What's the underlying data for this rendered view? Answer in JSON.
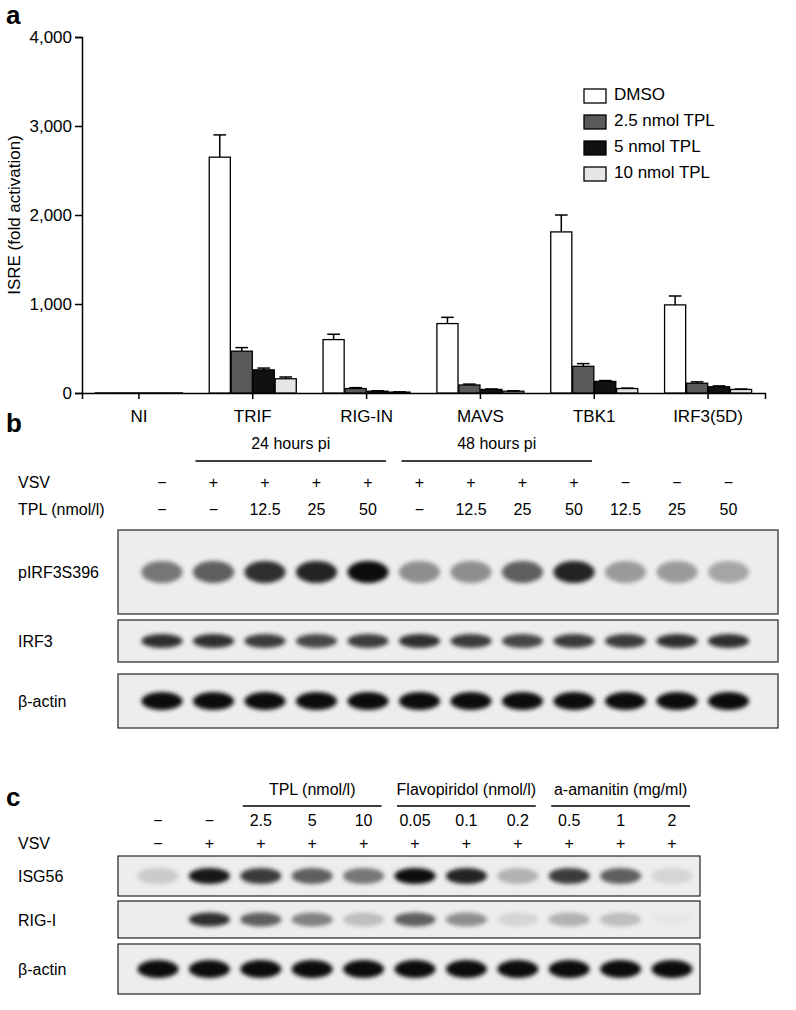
{
  "chart_data": {
    "type": "bar",
    "annotations": [
      "a"
    ],
    "y_label": "ISRE (fold activation)",
    "categories": [
      "NI",
      "TRIF",
      "RIG-IN",
      "MAVS",
      "TBK1",
      "IRF3(5D)"
    ],
    "ylim": [
      0,
      4000
    ],
    "yticks": [
      0,
      {
        "value": 1000,
        "label": "1,000"
      },
      {
        "value": 2000,
        "label": "2,000"
      },
      {
        "value": 3000,
        "label": "3,000"
      },
      {
        "value": 4000,
        "label": "4,000"
      }
    ],
    "grid": false,
    "legend": "top-right",
    "series": [
      {
        "name": "DMSO",
        "color": "#ffffff",
        "values": [
          1,
          2650,
          600,
          780,
          1810,
          990
        ],
        "errors": [
          0,
          250,
          60,
          70,
          190,
          100
        ]
      },
      {
        "name": "2.5 nmol TPL",
        "color": "#5a5a5a",
        "values": [
          1,
          470,
          50,
          90,
          300,
          110
        ],
        "errors": [
          0,
          40,
          10,
          10,
          30,
          15
        ]
      },
      {
        "name": "5 nmol TPL",
        "color": "#111111",
        "values": [
          1,
          260,
          20,
          40,
          130,
          70
        ],
        "errors": [
          0,
          20,
          5,
          5,
          10,
          10
        ]
      },
      {
        "name": "10 nmol TPL",
        "color": "#e6e6e6",
        "values": [
          1,
          160,
          10,
          20,
          50,
          40
        ],
        "errors": [
          0,
          20,
          3,
          5,
          5,
          5
        ]
      }
    ]
  },
  "blots": [
    {
      "label": "b",
      "groups": [
        {
          "text": "24 hours pi",
          "from": 1,
          "to": 4
        },
        {
          "text": "48 hours pi",
          "from": 5,
          "to": 8
        }
      ],
      "conditions": [
        {
          "name": "VSV",
          "values": [
            "−",
            "+",
            "+",
            "+",
            "+",
            "+",
            "+",
            "+",
            "+",
            "−",
            "−",
            "−"
          ]
        },
        {
          "name": "TPL (nmol/l)",
          "values": [
            "−",
            "−",
            "12.5",
            "25",
            "50",
            "−",
            "12.5",
            "25",
            "50",
            "12.5",
            "25",
            "50"
          ]
        }
      ],
      "rows": [
        {
          "name": "pIRF3S396",
          "intensity": [
            0.5,
            0.6,
            0.8,
            0.85,
            0.95,
            0.4,
            0.4,
            0.6,
            0.85,
            0.35,
            0.35,
            0.3
          ]
        },
        {
          "name": "IRF3",
          "intensity": [
            0.8,
            0.8,
            0.75,
            0.7,
            0.75,
            0.8,
            0.75,
            0.7,
            0.75,
            0.75,
            0.8,
            0.8
          ]
        },
        {
          "name": "β-actin",
          "intensity": [
            0.95,
            0.95,
            0.95,
            0.95,
            0.95,
            0.95,
            0.95,
            0.95,
            0.95,
            0.95,
            0.95,
            0.95
          ]
        }
      ]
    },
    {
      "label": "c",
      "groups": [
        {
          "text": "TPL (nmol/l)",
          "from": 2,
          "to": 4
        },
        {
          "text": "Flavopiridol (nmol/l)",
          "from": 5,
          "to": 7
        },
        {
          "text": "a-amanitin (mg/ml)",
          "from": 8,
          "to": 10
        }
      ],
      "conditions": [
        {
          "values": [
            "−",
            "−",
            "2.5",
            "5",
            "10",
            "0.05",
            "0.1",
            "0.2",
            "0.5",
            "1",
            "2"
          ]
        },
        {
          "name": "VSV",
          "values": [
            "−",
            "+",
            "+",
            "+",
            "+",
            "+",
            "+",
            "+",
            "+",
            "+",
            "+"
          ]
        }
      ],
      "rows": [
        {
          "name": "ISG56",
          "intensity": [
            0.15,
            0.9,
            0.75,
            0.6,
            0.5,
            0.95,
            0.85,
            0.25,
            0.75,
            0.6,
            0.1
          ]
        },
        {
          "name": "RIG-I",
          "intensity": [
            0,
            0.8,
            0.6,
            0.45,
            0.2,
            0.6,
            0.4,
            0.1,
            0.25,
            0.2,
            0.02
          ]
        },
        {
          "name": "β-actin",
          "intensity": [
            0.95,
            0.95,
            0.95,
            0.95,
            0.95,
            0.95,
            0.95,
            0.95,
            0.95,
            0.95,
            0.95
          ]
        }
      ]
    }
  ]
}
